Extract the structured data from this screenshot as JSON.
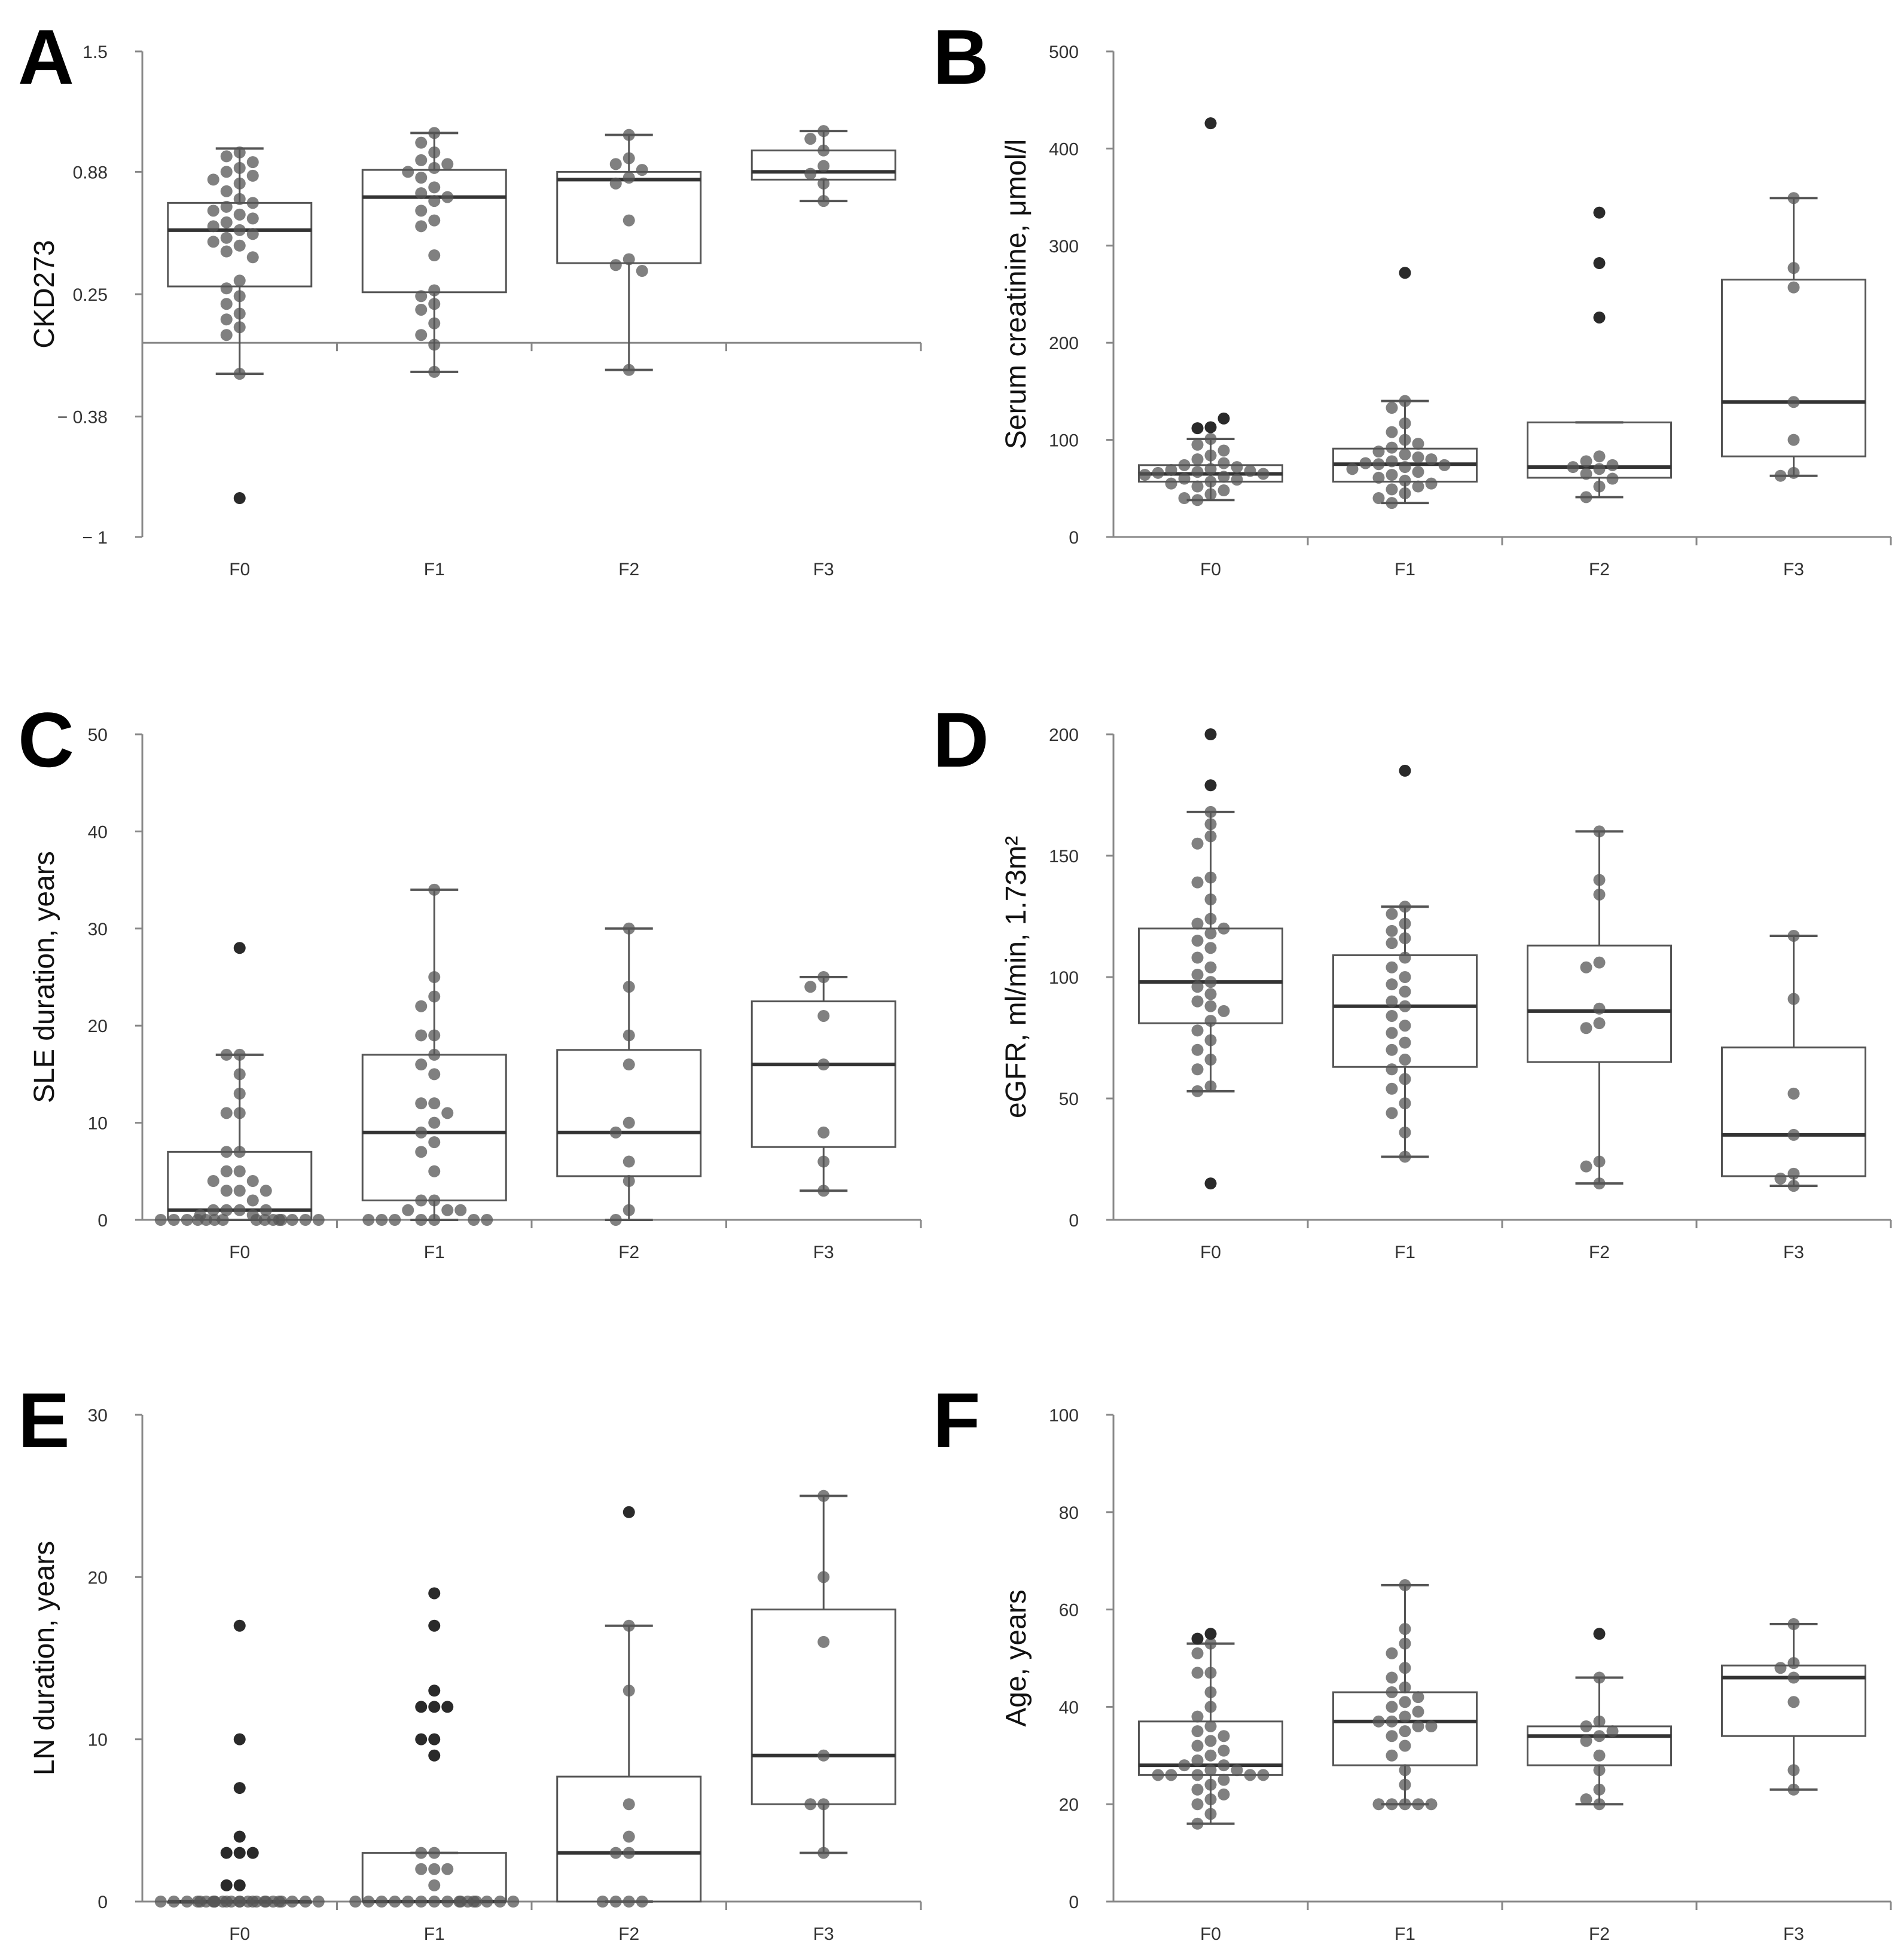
{
  "chart_data": [
    {
      "panel": "A",
      "type": "box",
      "ylabel": "CKD273",
      "ylim": [
        -1,
        1.5
      ],
      "yticks": [
        1.5,
        0.88,
        0.25,
        -0.38,
        -1
      ],
      "ytick_labels": [
        "1.5",
        "0.88",
        "0.25",
        "− 0.38",
        "− 1"
      ],
      "baseline": 0,
      "categories": [
        "F0",
        "F1",
        "F2",
        "F3"
      ],
      "groups": [
        {
          "label": "F0",
          "q1": 0.29,
          "median": 0.58,
          "q3": 0.72,
          "whisker_low": -0.16,
          "whisker_high": 1.0,
          "points": [
            0.98,
            0.96,
            0.93,
            0.9,
            0.88,
            0.86,
            0.84,
            0.82,
            0.78,
            0.74,
            0.72,
            0.7,
            0.68,
            0.66,
            0.64,
            0.62,
            0.6,
            0.58,
            0.56,
            0.54,
            0.52,
            0.5,
            0.47,
            0.44,
            0.32,
            0.28,
            0.24,
            0.2,
            0.15,
            0.12,
            0.08,
            0.04,
            -0.16
          ],
          "outliers": [
            -0.8
          ]
        },
        {
          "label": "F1",
          "q1": 0.26,
          "median": 0.75,
          "q3": 0.89,
          "whisker_low": -0.15,
          "whisker_high": 1.08,
          "points": [
            1.08,
            1.03,
            0.98,
            0.94,
            0.92,
            0.9,
            0.88,
            0.85,
            0.8,
            0.77,
            0.75,
            0.73,
            0.68,
            0.63,
            0.6,
            0.45,
            0.27,
            0.24,
            0.2,
            0.17,
            0.1,
            0.04,
            -0.01,
            -0.15
          ],
          "outliers": []
        },
        {
          "label": "F2",
          "q1": 0.41,
          "median": 0.84,
          "q3": 0.88,
          "whisker_low": -0.14,
          "whisker_high": 1.07,
          "points": [
            1.07,
            0.95,
            0.92,
            0.89,
            0.85,
            0.82,
            0.63,
            0.43,
            0.4,
            0.37,
            -0.14
          ],
          "outliers": []
        },
        {
          "label": "F3",
          "q1": 0.84,
          "median": 0.88,
          "q3": 0.99,
          "whisker_low": 0.73,
          "whisker_high": 1.09,
          "points": [
            1.09,
            1.05,
            0.99,
            0.91,
            0.87,
            0.82,
            0.73
          ],
          "outliers": []
        }
      ]
    },
    {
      "panel": "B",
      "type": "box",
      "ylabel": "Serum creatinine, μmol/l",
      "ylim": [
        0,
        500
      ],
      "yticks": [
        500,
        400,
        300,
        200,
        100,
        0
      ],
      "ytick_labels": [
        "500",
        "400",
        "300",
        "200",
        "100",
        "0"
      ],
      "categories": [
        "F0",
        "F1",
        "F2",
        "F3"
      ],
      "groups": [
        {
          "label": "F0",
          "q1": 57,
          "median": 65,
          "q3": 74,
          "whisker_low": 38,
          "whisker_high": 101,
          "points": [
            101,
            95,
            89,
            84,
            80,
            76,
            74,
            72,
            70,
            69,
            68,
            67,
            66,
            65,
            64,
            62,
            60,
            59,
            57,
            55,
            52,
            48,
            44,
            40,
            38
          ],
          "outliers": [
            426,
            113,
            112,
            122
          ]
        },
        {
          "label": "F1",
          "q1": 57,
          "median": 75,
          "q3": 91,
          "whisker_low": 35,
          "whisker_high": 140,
          "points": [
            140,
            133,
            117,
            108,
            100,
            96,
            92,
            88,
            85,
            82,
            80,
            78,
            76,
            75,
            74,
            72,
            70,
            67,
            64,
            61,
            58,
            55,
            52,
            49,
            45,
            40,
            35
          ],
          "outliers": [
            272
          ]
        },
        {
          "label": "F2",
          "q1": 61,
          "median": 72,
          "q3": 118,
          "whisker_low": 41,
          "whisker_high": 118,
          "points": [
            83,
            78,
            74,
            72,
            70,
            65,
            60,
            52,
            41
          ],
          "outliers": [
            334,
            282,
            226
          ]
        },
        {
          "label": "F3",
          "q1": 83,
          "median": 139,
          "q3": 265,
          "whisker_low": 63,
          "whisker_high": 349,
          "points": [
            349,
            277,
            257,
            139,
            100,
            66,
            63
          ],
          "outliers": []
        }
      ]
    },
    {
      "panel": "C",
      "type": "box",
      "ylabel": "SLE duration, years",
      "ylim": [
        0,
        50
      ],
      "yticks": [
        50,
        40,
        30,
        20,
        10,
        0
      ],
      "ytick_labels": [
        "50",
        "40",
        "30",
        "20",
        "10",
        "0"
      ],
      "categories": [
        "F0",
        "F1",
        "F2",
        "F3"
      ],
      "groups": [
        {
          "label": "F0",
          "q1": 0,
          "median": 1,
          "q3": 7,
          "whisker_low": 0,
          "whisker_high": 17,
          "points": [
            17,
            17,
            15,
            13,
            11,
            11,
            7,
            7,
            5,
            5,
            4,
            4,
            3,
            3,
            3,
            2,
            1,
            1,
            1,
            1,
            0.5,
            0.5,
            0,
            0,
            0,
            0,
            0,
            0,
            0,
            0,
            0,
            0,
            0,
            0,
            0,
            0,
            0
          ],
          "outliers": [
            28
          ]
        },
        {
          "label": "F1",
          "q1": 2,
          "median": 9,
          "q3": 17,
          "whisker_low": 0,
          "whisker_high": 34,
          "points": [
            34,
            25,
            23,
            22,
            19,
            19,
            17,
            16,
            15,
            12,
            12,
            11,
            10,
            9,
            8,
            7,
            5,
            2,
            2,
            1,
            1,
            1,
            0,
            0,
            0,
            0,
            0,
            0,
            0
          ],
          "outliers": []
        },
        {
          "label": "F2",
          "q1": 4.5,
          "median": 9,
          "q3": 17.5,
          "whisker_low": 0,
          "whisker_high": 30,
          "points": [
            30,
            24,
            19,
            16,
            10,
            9,
            6,
            4,
            1,
            0
          ],
          "outliers": []
        },
        {
          "label": "F3",
          "q1": 7.5,
          "median": 16,
          "q3": 22.5,
          "whisker_low": 3,
          "whisker_high": 25,
          "points": [
            25,
            24,
            21,
            16,
            9,
            6,
            3
          ],
          "outliers": []
        }
      ]
    },
    {
      "panel": "D",
      "type": "box",
      "ylabel": "eGFR, ml/min, 1.73m²",
      "ylim": [
        0,
        200
      ],
      "yticks": [
        200,
        150,
        100,
        50,
        0
      ],
      "ytick_labels": [
        "200",
        "150",
        "100",
        "50",
        "0"
      ],
      "categories": [
        "F0",
        "F1",
        "F2",
        "F3"
      ],
      "groups": [
        {
          "label": "F0",
          "q1": 81,
          "median": 98,
          "q3": 120,
          "whisker_low": 53,
          "whisker_high": 168,
          "points": [
            168,
            163,
            158,
            155,
            141,
            139,
            132,
            124,
            122,
            120,
            118,
            115,
            112,
            108,
            104,
            101,
            98,
            96,
            93,
            90,
            88,
            86,
            82,
            78,
            74,
            70,
            66,
            62,
            55,
            53
          ],
          "outliers": [
            200,
            179,
            15
          ]
        },
        {
          "label": "F1",
          "q1": 63,
          "median": 88,
          "q3": 109,
          "whisker_low": 26,
          "whisker_high": 129,
          "points": [
            129,
            126,
            122,
            119,
            116,
            114,
            108,
            104,
            100,
            97,
            94,
            90,
            88,
            84,
            80,
            77,
            73,
            70,
            66,
            62,
            58,
            54,
            48,
            44,
            36,
            26
          ],
          "outliers": [
            185
          ]
        },
        {
          "label": "F2",
          "q1": 65,
          "median": 86,
          "q3": 113,
          "whisker_low": 15,
          "whisker_high": 160,
          "points": [
            160,
            140,
            134,
            106,
            104,
            87,
            81,
            79,
            24,
            22,
            15
          ],
          "outliers": []
        },
        {
          "label": "F3",
          "q1": 18,
          "median": 35,
          "q3": 71,
          "whisker_low": 14,
          "whisker_high": 117,
          "points": [
            117,
            91,
            52,
            35,
            19,
            17,
            14
          ],
          "outliers": []
        }
      ]
    },
    {
      "panel": "E",
      "type": "box",
      "ylabel": "LN duration, years",
      "ylim": [
        0,
        30
      ],
      "yticks": [
        30,
        20,
        10,
        0
      ],
      "ytick_labels": [
        "30",
        "20",
        "10",
        "0"
      ],
      "categories": [
        "F0",
        "F1",
        "F2",
        "F3"
      ],
      "groups": [
        {
          "label": "F0",
          "q1": 0,
          "median": 0,
          "q3": 0,
          "whisker_low": 0,
          "whisker_high": 0,
          "points": [
            0,
            0,
            0,
            0,
            0,
            0,
            0,
            0,
            0,
            0,
            0,
            0,
            0,
            0,
            0,
            0,
            0,
            0,
            0,
            0,
            0,
            0,
            0,
            0,
            0
          ],
          "outliers": [
            17,
            10,
            7,
            4,
            3,
            3,
            3,
            1,
            1
          ]
        },
        {
          "label": "F1",
          "q1": 0,
          "median": 0,
          "q3": 3,
          "whisker_low": 0,
          "whisker_high": 3,
          "points": [
            3,
            3,
            2,
            2,
            2,
            1,
            0,
            0,
            0,
            0,
            0,
            0,
            0,
            0,
            0,
            0,
            0,
            0,
            0,
            0,
            0,
            0
          ],
          "outliers": [
            19,
            17,
            13,
            12,
            12,
            12,
            10,
            10,
            9
          ]
        },
        {
          "label": "F2",
          "q1": 0,
          "median": 3,
          "q3": 7.7,
          "whisker_low": 0,
          "whisker_high": 17,
          "points": [
            17,
            13,
            6,
            4,
            3,
            3,
            0,
            0,
            0,
            0
          ],
          "outliers": [
            24
          ]
        },
        {
          "label": "F3",
          "q1": 6,
          "median": 9,
          "q3": 18,
          "whisker_low": 3,
          "whisker_high": 25,
          "points": [
            25,
            20,
            16,
            9,
            6,
            6,
            3
          ],
          "outliers": []
        }
      ]
    },
    {
      "panel": "F",
      "type": "box",
      "ylabel": "Age, years",
      "ylim": [
        0,
        100
      ],
      "yticks": [
        100,
        80,
        60,
        40,
        20,
        0
      ],
      "ytick_labels": [
        "100",
        "80",
        "60",
        "40",
        "20",
        "0"
      ],
      "categories": [
        "F0",
        "F1",
        "F2",
        "F3"
      ],
      "groups": [
        {
          "label": "F0",
          "q1": 26,
          "median": 28,
          "q3": 37,
          "whisker_low": 16,
          "whisker_high": 53,
          "points": [
            53,
            51,
            47,
            47,
            43,
            40,
            38,
            36,
            35,
            34,
            33,
            32,
            31,
            30,
            29,
            28,
            28,
            27,
            27,
            26,
            26,
            26,
            26,
            26,
            25,
            24,
            23,
            22,
            21,
            20,
            18,
            16
          ],
          "outliers": [
            55,
            54
          ]
        },
        {
          "label": "F1",
          "q1": 28,
          "median": 37,
          "q3": 43,
          "whisker_low": 20,
          "whisker_high": 65,
          "points": [
            65,
            56,
            53,
            51,
            48,
            46,
            44,
            43,
            42,
            41,
            40,
            39,
            38,
            37,
            37,
            36,
            36,
            35,
            34,
            32,
            30,
            27,
            24,
            20,
            20,
            20,
            20,
            20
          ],
          "outliers": []
        },
        {
          "label": "F2",
          "q1": 28,
          "median": 34,
          "q3": 36,
          "whisker_low": 20,
          "whisker_high": 46,
          "points": [
            46,
            37,
            36,
            35,
            34,
            33,
            30,
            27,
            23,
            21,
            20
          ],
          "outliers": [
            55
          ]
        },
        {
          "label": "F3",
          "q1": 34,
          "median": 46,
          "q3": 48.5,
          "whisker_low": 23,
          "whisker_high": 57,
          "points": [
            57,
            49,
            48,
            46,
            41,
            27,
            23
          ],
          "outliers": []
        }
      ]
    }
  ]
}
